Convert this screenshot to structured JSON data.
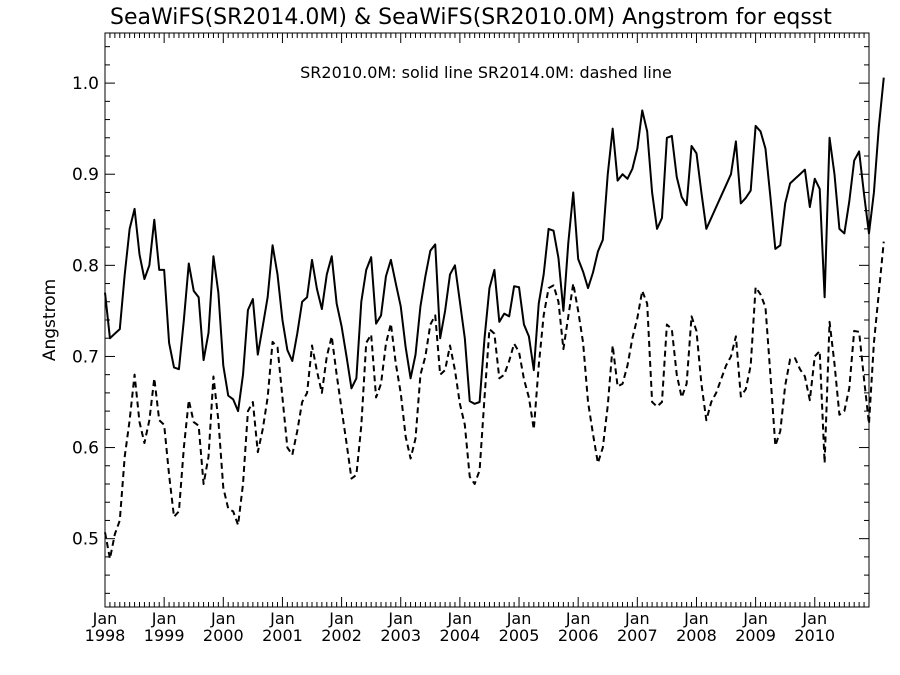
{
  "chart_data": {
    "type": "line",
    "title": "SeaWiFS(SR2014.0M) & SeaWiFS(SR2010.0M)  Angstrom for eqsst",
    "annotation": "SR2010.0M: solid line   SR2014.0M: dashed line",
    "xlabel": "",
    "ylabel": "Angstrom",
    "ylim": [
      0.425,
      1.055
    ],
    "xlim": [
      1998.0,
      2010.917
    ],
    "yticks": [
      "0.5",
      "0.6",
      "0.7",
      "0.8",
      "0.9",
      "1.0"
    ],
    "xtick_month": "Jan",
    "xtick_years": [
      "1998",
      "1999",
      "2000",
      "2001",
      "2002",
      "2003",
      "2004",
      "2005",
      "2006",
      "2007",
      "2008",
      "2009",
      "2010"
    ],
    "grid": false,
    "x_start_year": 1998,
    "x_start_month": 1,
    "series": [
      {
        "name": "SR2010.0M",
        "style": "solid",
        "color": "#000000",
        "values": [
          0.77,
          0.72,
          0.725,
          0.73,
          0.79,
          0.84,
          0.862,
          0.812,
          0.785,
          0.8,
          0.85,
          0.795,
          0.795,
          0.715,
          0.688,
          0.686,
          0.74,
          0.802,
          0.772,
          0.765,
          0.696,
          0.726,
          0.81,
          0.77,
          0.69,
          0.657,
          0.653,
          0.64,
          0.68,
          0.751,
          0.763,
          0.702,
          0.733,
          0.765,
          0.822,
          0.79,
          0.74,
          0.707,
          0.695,
          0.725,
          0.76,
          0.765,
          0.806,
          0.774,
          0.752,
          0.79,
          0.81,
          0.758,
          0.733,
          0.7,
          0.665,
          0.676,
          0.76,
          0.795,
          0.809,
          0.736,
          0.745,
          0.788,
          0.806,
          0.78,
          0.755,
          0.71,
          0.676,
          0.702,
          0.755,
          0.788,
          0.816,
          0.823,
          0.72,
          0.75,
          0.79,
          0.8,
          0.76,
          0.72,
          0.651,
          0.648,
          0.65,
          0.72,
          0.775,
          0.795,
          0.738,
          0.747,
          0.744,
          0.777,
          0.776,
          0.735,
          0.722,
          0.685,
          0.758,
          0.79,
          0.84,
          0.838,
          0.808,
          0.75,
          0.825,
          0.88,
          0.807,
          0.793,
          0.775,
          0.792,
          0.815,
          0.828,
          0.9,
          0.95,
          0.893,
          0.9,
          0.895,
          0.906,
          0.928,
          0.97,
          0.947,
          0.88,
          0.84,
          0.852,
          0.94,
          0.942,
          0.897,
          0.875,
          0.866,
          0.931,
          0.923,
          0.88,
          0.84,
          0.852,
          0.864,
          0.876,
          0.888,
          0.9,
          0.936,
          0.868,
          0.874,
          0.882,
          0.953,
          0.947,
          0.928,
          0.875,
          0.818,
          0.822,
          0.868,
          0.89,
          0.895,
          0.9,
          0.905,
          0.864,
          0.895,
          0.884,
          0.765,
          0.94,
          0.9,
          0.84,
          0.835,
          0.87,
          0.915,
          0.925,
          0.878,
          0.835,
          0.88,
          0.952,
          1.006
        ]
      },
      {
        "name": "SR2014.0M",
        "style": "dashed",
        "color": "#000000",
        "values": [
          0.507,
          0.478,
          0.505,
          0.52,
          0.59,
          0.63,
          0.68,
          0.628,
          0.605,
          0.63,
          0.676,
          0.63,
          0.625,
          0.57,
          0.524,
          0.53,
          0.6,
          0.652,
          0.628,
          0.624,
          0.56,
          0.59,
          0.678,
          0.63,
          0.556,
          0.533,
          0.53,
          0.515,
          0.56,
          0.64,
          0.65,
          0.595,
          0.62,
          0.655,
          0.716,
          0.71,
          0.655,
          0.6,
          0.592,
          0.618,
          0.65,
          0.66,
          0.712,
          0.684,
          0.66,
          0.7,
          0.722,
          0.68,
          0.642,
          0.605,
          0.566,
          0.57,
          0.624,
          0.715,
          0.724,
          0.655,
          0.67,
          0.714,
          0.736,
          0.692,
          0.66,
          0.612,
          0.588,
          0.61,
          0.68,
          0.7,
          0.735,
          0.745,
          0.68,
          0.685,
          0.712,
          0.685,
          0.648,
          0.625,
          0.568,
          0.56,
          0.575,
          0.655,
          0.73,
          0.725,
          0.676,
          0.68,
          0.695,
          0.714,
          0.705,
          0.675,
          0.655,
          0.62,
          0.69,
          0.745,
          0.775,
          0.778,
          0.76,
          0.708,
          0.744,
          0.78,
          0.75,
          0.715,
          0.65,
          0.615,
          0.583,
          0.6,
          0.646,
          0.712,
          0.667,
          0.67,
          0.69,
          0.72,
          0.742,
          0.772,
          0.758,
          0.65,
          0.645,
          0.65,
          0.735,
          0.73,
          0.68,
          0.655,
          0.67,
          0.744,
          0.728,
          0.67,
          0.63,
          0.65,
          0.66,
          0.675,
          0.69,
          0.7,
          0.722,
          0.656,
          0.664,
          0.69,
          0.776,
          0.768,
          0.754,
          0.68,
          0.602,
          0.618,
          0.668,
          0.697,
          0.698,
          0.686,
          0.678,
          0.652,
          0.7,
          0.706,
          0.583,
          0.738,
          0.692,
          0.636,
          0.64,
          0.665,
          0.728,
          0.727,
          0.675,
          0.626,
          0.715,
          0.77,
          0.826
        ]
      }
    ]
  }
}
